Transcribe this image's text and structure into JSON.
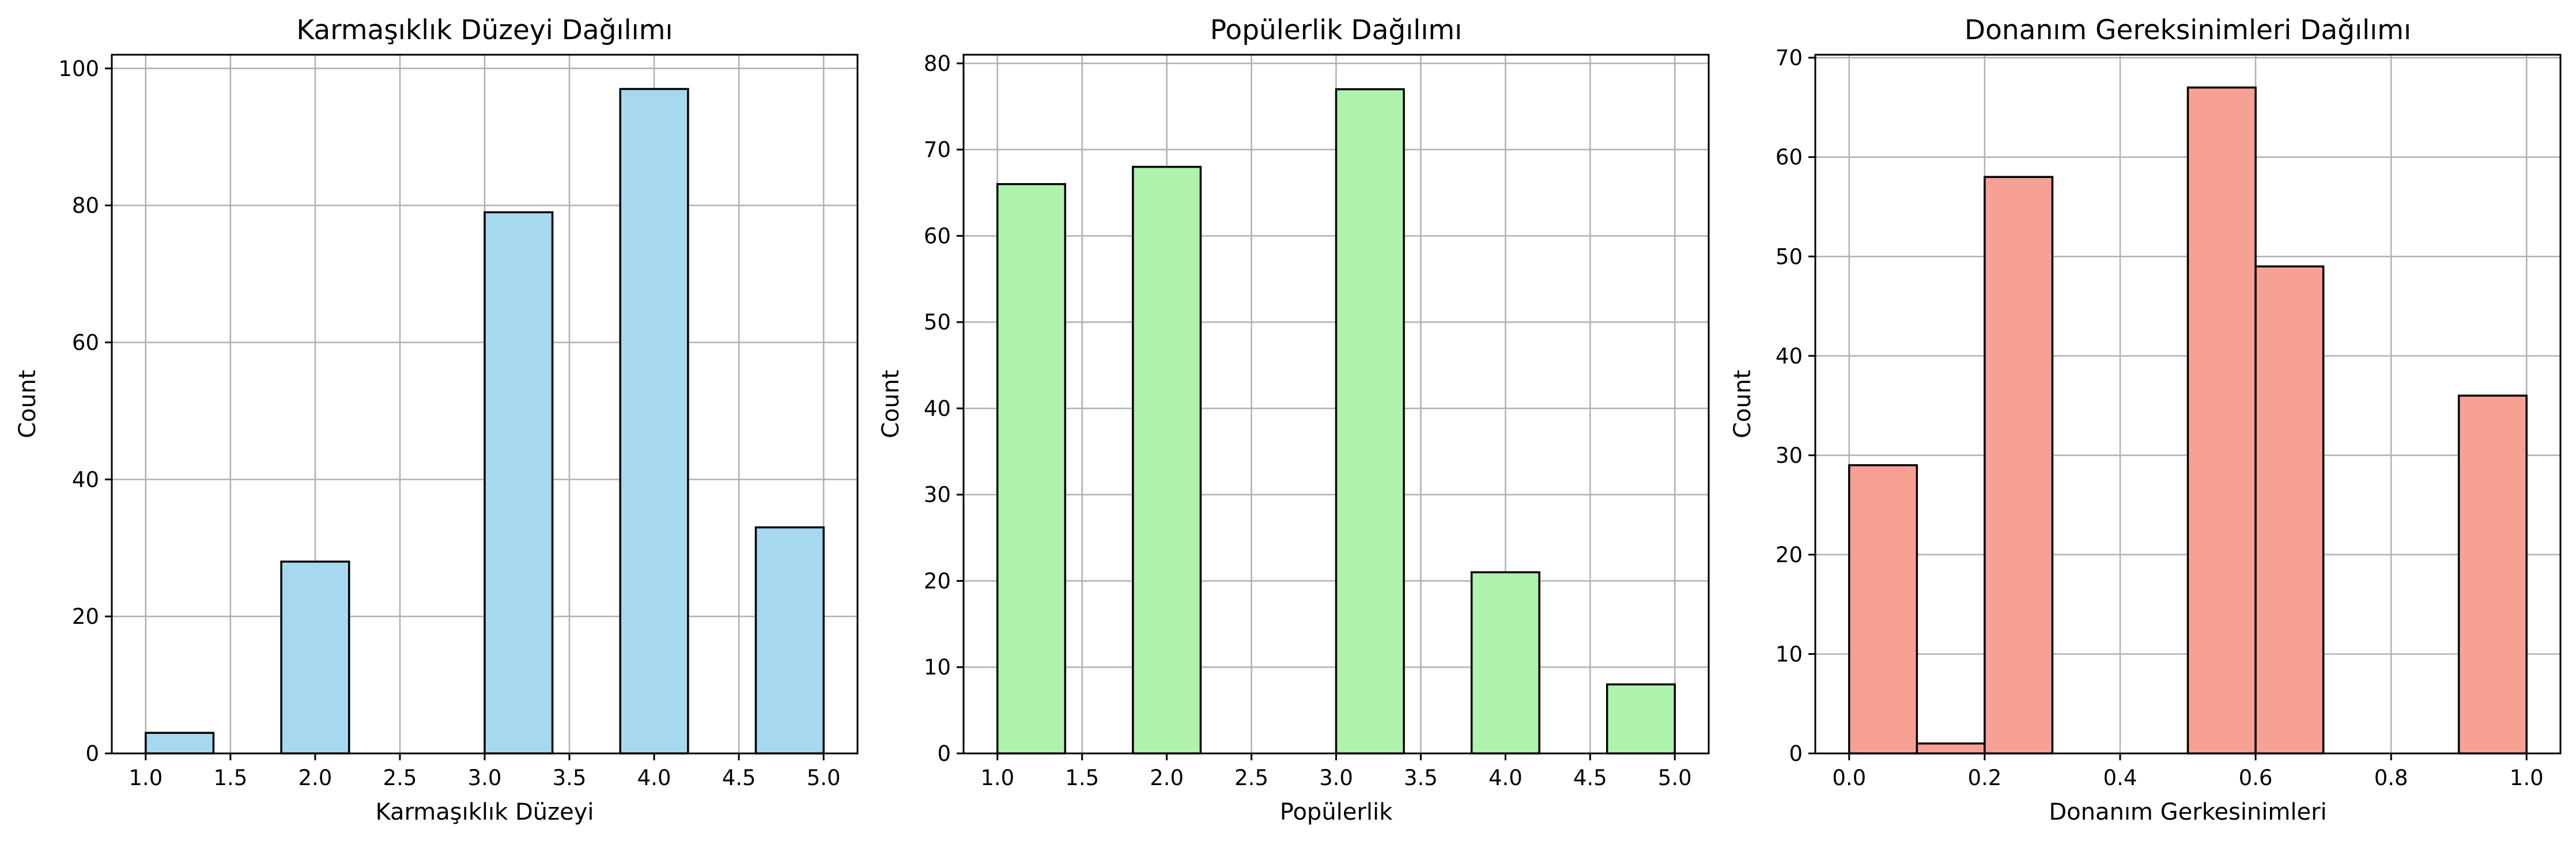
{
  "chart_data": [
    {
      "type": "bar",
      "title": "Karmaşıklık Düzeyi Dağılımı",
      "xlabel": "Karmaşıklık Düzeyi",
      "ylabel": "Count",
      "color": "#a6d9ef",
      "xlim": [
        0.8,
        5.2
      ],
      "ylim": [
        0,
        102
      ],
      "xticks": [
        1.0,
        1.5,
        2.0,
        2.5,
        3.0,
        3.5,
        4.0,
        4.5,
        5.0
      ],
      "xtick_labels": [
        "1.0",
        "1.5",
        "2.0",
        "2.5",
        "3.0",
        "3.5",
        "4.0",
        "4.5",
        "5.0"
      ],
      "yticks": [
        0,
        20,
        40,
        60,
        80,
        100
      ],
      "ytick_labels": [
        "0",
        "20",
        "40",
        "60",
        "80",
        "100"
      ],
      "grid": true,
      "bins": [
        {
          "x0": 1.0,
          "x1": 1.4,
          "count": 3
        },
        {
          "x0": 1.4,
          "x1": 1.8,
          "count": 0
        },
        {
          "x0": 1.8,
          "x1": 2.2,
          "count": 28
        },
        {
          "x0": 2.2,
          "x1": 2.6,
          "count": 0
        },
        {
          "x0": 2.6,
          "x1": 3.0,
          "count": 0
        },
        {
          "x0": 3.0,
          "x1": 3.4,
          "count": 79
        },
        {
          "x0": 3.4,
          "x1": 3.8,
          "count": 0
        },
        {
          "x0": 3.8,
          "x1": 4.2,
          "count": 97
        },
        {
          "x0": 4.2,
          "x1": 4.6,
          "count": 0
        },
        {
          "x0": 4.6,
          "x1": 5.0,
          "count": 33
        }
      ]
    },
    {
      "type": "bar",
      "title": "Popülerlik Dağılımı",
      "xlabel": "Popülerlik",
      "ylabel": "Count",
      "color": "#aff2ad",
      "xlim": [
        0.8,
        5.2
      ],
      "ylim": [
        0,
        81
      ],
      "xticks": [
        1.0,
        1.5,
        2.0,
        2.5,
        3.0,
        3.5,
        4.0,
        4.5,
        5.0
      ],
      "xtick_labels": [
        "1.0",
        "1.5",
        "2.0",
        "2.5",
        "3.0",
        "3.5",
        "4.0",
        "4.5",
        "5.0"
      ],
      "yticks": [
        0,
        10,
        20,
        30,
        40,
        50,
        60,
        70,
        80
      ],
      "ytick_labels": [
        "0",
        "10",
        "20",
        "30",
        "40",
        "50",
        "60",
        "70",
        "80"
      ],
      "grid": true,
      "bins": [
        {
          "x0": 1.0,
          "x1": 1.4,
          "count": 66
        },
        {
          "x0": 1.4,
          "x1": 1.8,
          "count": 0
        },
        {
          "x0": 1.8,
          "x1": 2.2,
          "count": 68
        },
        {
          "x0": 2.2,
          "x1": 2.6,
          "count": 0
        },
        {
          "x0": 2.6,
          "x1": 3.0,
          "count": 0
        },
        {
          "x0": 3.0,
          "x1": 3.4,
          "count": 77
        },
        {
          "x0": 3.4,
          "x1": 3.8,
          "count": 0
        },
        {
          "x0": 3.8,
          "x1": 4.2,
          "count": 21
        },
        {
          "x0": 4.2,
          "x1": 4.6,
          "count": 0
        },
        {
          "x0": 4.6,
          "x1": 5.0,
          "count": 8
        }
      ]
    },
    {
      "type": "bar",
      "title": "Donanım Gereksinimleri Dağılımı",
      "xlabel": "Donanım Gerkesinimleri",
      "ylabel": "Count",
      "color": "#f7a195",
      "xlim": [
        -0.05,
        1.05
      ],
      "ylim": [
        0,
        70.3
      ],
      "xticks": [
        0.0,
        0.2,
        0.4,
        0.6,
        0.8,
        1.0
      ],
      "xtick_labels": [
        "0.0",
        "0.2",
        "0.4",
        "0.6",
        "0.8",
        "1.0"
      ],
      "yticks": [
        0,
        10,
        20,
        30,
        40,
        50,
        60,
        70
      ],
      "ytick_labels": [
        "0",
        "10",
        "20",
        "30",
        "40",
        "50",
        "60",
        "70"
      ],
      "grid": true,
      "bins": [
        {
          "x0": 0.0,
          "x1": 0.1,
          "count": 29
        },
        {
          "x0": 0.1,
          "x1": 0.2,
          "count": 1
        },
        {
          "x0": 0.2,
          "x1": 0.3,
          "count": 58
        },
        {
          "x0": 0.3,
          "x1": 0.4,
          "count": 0
        },
        {
          "x0": 0.4,
          "x1": 0.5,
          "count": 0
        },
        {
          "x0": 0.5,
          "x1": 0.6,
          "count": 67
        },
        {
          "x0": 0.6,
          "x1": 0.7,
          "count": 49
        },
        {
          "x0": 0.7,
          "x1": 0.8,
          "count": 0
        },
        {
          "x0": 0.8,
          "x1": 0.9,
          "count": 0
        },
        {
          "x0": 0.9,
          "x1": 1.0,
          "count": 36
        }
      ]
    }
  ]
}
